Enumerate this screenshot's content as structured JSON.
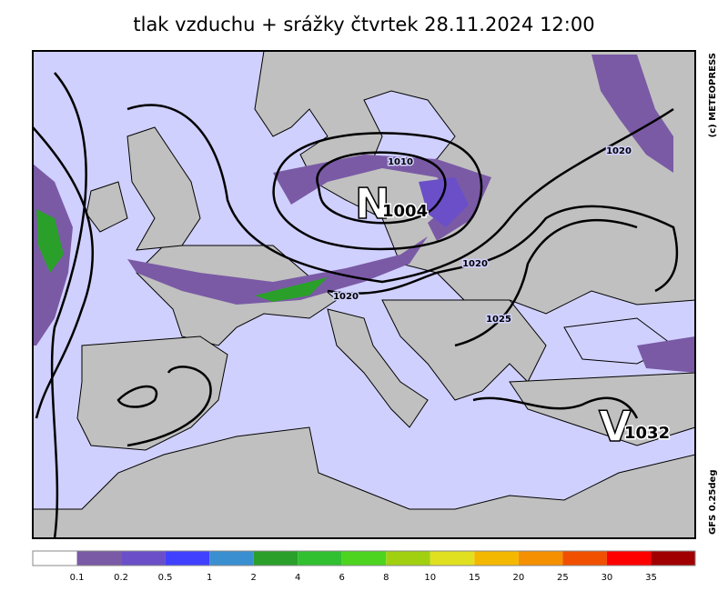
{
  "title": "tlak vzduchu + srážky čtvrtek 28.11.2024 12:00",
  "copyright": "(c) METEOPRESS",
  "model": "GFS 0.25deg",
  "isobar_labels": [
    1010,
    1020,
    1020,
    1020,
    1025
  ],
  "centers": [
    {
      "letter": "N",
      "pressure": 1004
    },
    {
      "letter": "V",
      "pressure": 1032
    }
  ],
  "legend": {
    "colors": [
      "#ffffff",
      "#7a5aa5",
      "#6a4fc8",
      "#4040ff",
      "#3a8fd0",
      "#2aa02a",
      "#30c030",
      "#4dd41e",
      "#a0d010",
      "#e0e020",
      "#f5b800",
      "#f59000",
      "#f05000",
      "#ff0000",
      "#a00000"
    ],
    "labels": [
      0.1,
      0.2,
      0.5,
      1,
      2,
      4,
      6,
      8,
      10,
      15,
      20,
      25,
      30,
      35
    ]
  }
}
